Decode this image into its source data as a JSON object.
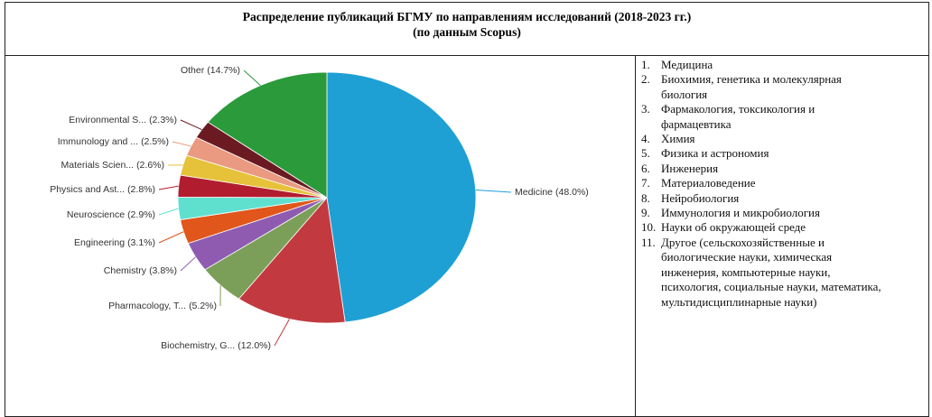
{
  "chart_data": {
    "type": "pie",
    "title": "Распределение публикаций БГМУ по направлениям исследований (2018-2023 гг.)",
    "subtitle": "(по данным Scopus)",
    "categories": [
      "Medicine",
      "Biochemistry, G...",
      "Pharmacology, T...",
      "Chemistry",
      "Engineering",
      "Neuroscience",
      "Physics and Ast...",
      "Materials Scien...",
      "Immunology and ...",
      "Environmental S...",
      "Other"
    ],
    "values": [
      48.0,
      12.0,
      5.2,
      3.8,
      3.1,
      2.9,
      2.8,
      2.6,
      2.5,
      2.3,
      14.7
    ],
    "value_labels": [
      "(48.0%)",
      "(12.0%)",
      "(5.2%)",
      "(3.8%)",
      "(3.1%)",
      "(2.9%)",
      "(2.8%)",
      "(2.6%)",
      "(2.5%)",
      "(2.3%)",
      "(14.7%)"
    ],
    "colors": [
      "#1ea0d5",
      "#c23a40",
      "#7b9f58",
      "#8f5bb1",
      "#e0561b",
      "#5fe0cf",
      "#b11d2f",
      "#e6c23a",
      "#e99a80",
      "#6b1a22",
      "#2b9a3b"
    ]
  },
  "list": [
    {
      "number": "1.",
      "text": "Медицина"
    },
    {
      "number": "2.",
      "text": "Биохимия, генетика и молекулярная биология"
    },
    {
      "number": "3.",
      "text": "Фармакология, токсикология и фармацевтика"
    },
    {
      "number": "4.",
      "text": "Химия"
    },
    {
      "number": "5.",
      "text": "Физика и астрономия"
    },
    {
      "number": "6.",
      "text": "Инженерия"
    },
    {
      "number": "7.",
      "text": "Материаловедение"
    },
    {
      "number": "8.",
      "text": "Нейробиология"
    },
    {
      "number": "9.",
      "text": "Иммунология и микробиология"
    },
    {
      "number": "10.",
      "text": "Науки об окружающей среде"
    },
    {
      "number": "11.",
      "text": "Другое (сельскохозяйственные и биологические науки, химическая инженерия, компьютерные науки, психология, социальные науки, математика, мультидисциплинарные науки)"
    }
  ]
}
